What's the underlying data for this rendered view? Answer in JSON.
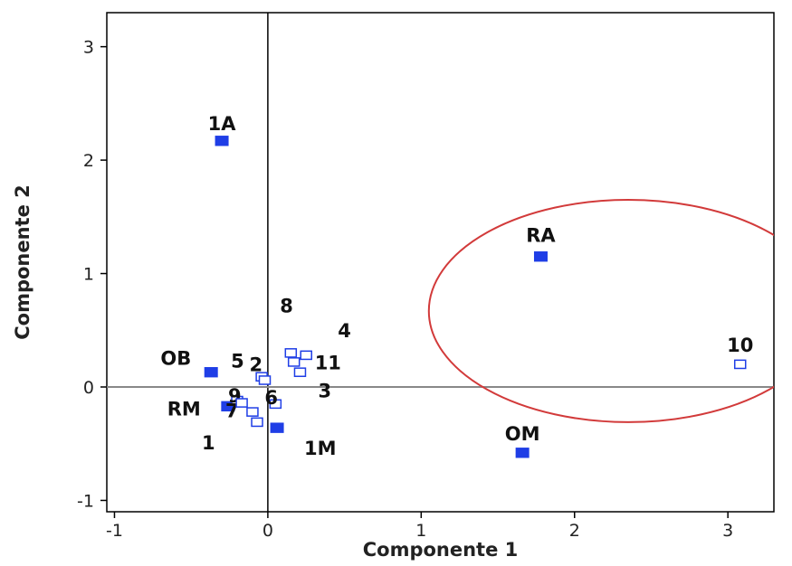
{
  "chart_data": {
    "type": "scatter",
    "xlabel": "Componente 1",
    "ylabel": "Componente 2",
    "xlim": [
      -1.05,
      3.3
    ],
    "ylim": [
      -1.1,
      3.3
    ],
    "x_ticks": [
      -1,
      0,
      1,
      2,
      3
    ],
    "y_ticks": [
      -1,
      0,
      1,
      2,
      3
    ],
    "x_tick_labels": [
      "-1",
      "0",
      "1",
      "2",
      "3"
    ],
    "y_tick_labels": [
      "-1",
      "0",
      "1",
      "2",
      "3"
    ],
    "reference_lines": {
      "x": 0,
      "y": 0
    },
    "grid": false,
    "legend": "none",
    "colors": {
      "filled": "#1f3ee6",
      "hollow": "#1f3ee6",
      "ellipse": "#d23a3a",
      "axes": "#000000",
      "reference": "#888888"
    },
    "points": [
      {
        "label": "1A",
        "x": -0.3,
        "y": 2.17,
        "style": "filled"
      },
      {
        "label": "RA",
        "x": 1.78,
        "y": 1.15,
        "style": "filled"
      },
      {
        "label": "OB",
        "x": -0.37,
        "y": 0.13,
        "style": "filled"
      },
      {
        "label": "RM",
        "x": -0.26,
        "y": -0.17,
        "style": "filled"
      },
      {
        "label": "1M",
        "x": 0.06,
        "y": -0.36,
        "style": "filled"
      },
      {
        "label": "OM",
        "x": 1.66,
        "y": -0.58,
        "style": "filled"
      },
      {
        "label": "10",
        "x": 3.08,
        "y": 0.2,
        "style": "hollow"
      },
      {
        "label": "8",
        "x": 0.15,
        "y": 0.3,
        "style": "hollow"
      },
      {
        "label": "4",
        "x": 0.25,
        "y": 0.28,
        "style": "hollow"
      },
      {
        "label": "11",
        "x": 0.17,
        "y": 0.22,
        "style": "hollow"
      },
      {
        "label": "3",
        "x": 0.21,
        "y": 0.13,
        "style": "hollow"
      },
      {
        "label": "5",
        "x": -0.04,
        "y": 0.09,
        "style": "hollow"
      },
      {
        "label": "2",
        "x": -0.02,
        "y": 0.06,
        "style": "hollow"
      },
      {
        "label": "9",
        "x": -0.2,
        "y": -0.12,
        "style": "hollow"
      },
      {
        "label": "6",
        "x": 0.05,
        "y": -0.15,
        "style": "hollow"
      },
      {
        "label": "7",
        "x": -0.1,
        "y": -0.22,
        "style": "hollow"
      },
      {
        "label": "",
        "x": -0.17,
        "y": -0.14,
        "style": "hollow"
      },
      {
        "label": "1",
        "x": -0.07,
        "y": -0.31,
        "style": "hollow"
      }
    ],
    "ellipse": {
      "cx": 2.35,
      "cy": 0.67,
      "rx": 1.3,
      "ry": 0.98,
      "rotation_deg": 0
    }
  }
}
